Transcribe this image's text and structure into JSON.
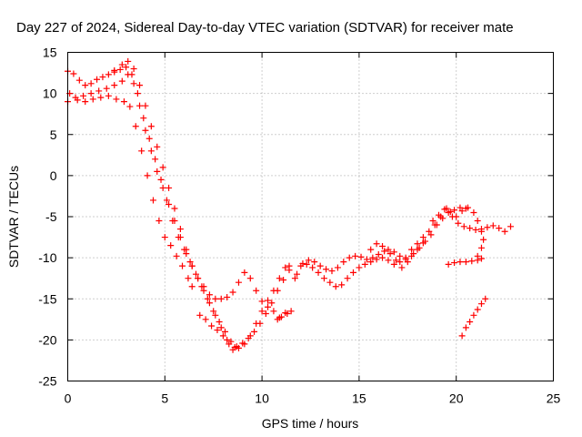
{
  "chart_data": {
    "type": "scatter",
    "title": "Day 227 of 2024, Sidereal Day-to-day VTEC variation (SDTVAR) for receiver mate",
    "xlabel": "GPS time / hours",
    "ylabel": "SDTVAR / TECUs",
    "xlim": [
      0,
      25
    ],
    "ylim": [
      -25,
      15
    ],
    "xticks": [
      0,
      5,
      10,
      15,
      20,
      25
    ],
    "yticks": [
      -25,
      -20,
      -15,
      -10,
      -5,
      0,
      5,
      10,
      15
    ],
    "grid": true,
    "marker": "plus",
    "color": "#ff0000",
    "series": [
      {
        "values_xy": [
          [
            0.0,
            12.7
          ],
          [
            0.3,
            12.4
          ],
          [
            0.6,
            11.6
          ],
          [
            0.9,
            11.0
          ],
          [
            1.2,
            11.2
          ],
          [
            1.5,
            11.7
          ],
          [
            1.8,
            12.0
          ],
          [
            2.1,
            12.3
          ],
          [
            2.4,
            12.6
          ],
          [
            2.7,
            12.9
          ],
          [
            3.0,
            13.2
          ],
          [
            3.3,
            12.3
          ],
          [
            3.6,
            10.0
          ],
          [
            3.9,
            7.0
          ],
          [
            4.2,
            4.5
          ],
          [
            4.5,
            2.0
          ],
          [
            4.8,
            -0.5
          ],
          [
            5.1,
            -3.0
          ],
          [
            5.4,
            -5.5
          ],
          [
            5.7,
            -7.5
          ],
          [
            6.0,
            -9.0
          ],
          [
            6.3,
            -10.5
          ],
          [
            6.6,
            -12.0
          ],
          [
            6.9,
            -13.5
          ],
          [
            7.2,
            -15.0
          ],
          [
            7.5,
            -16.5
          ],
          [
            7.8,
            -17.8
          ],
          [
            8.1,
            -19.0
          ],
          [
            8.4,
            -20.2
          ],
          [
            8.7,
            -20.8
          ],
          [
            9.0,
            -20.4
          ],
          [
            9.3,
            -19.8
          ],
          [
            9.6,
            -19.0
          ],
          [
            9.9,
            -18.0
          ],
          [
            10.2,
            -16.8
          ],
          [
            10.5,
            -15.5
          ],
          [
            10.8,
            -14.0
          ],
          [
            11.1,
            -12.7
          ],
          [
            11.4,
            -11.5
          ]
        ]
      },
      {
        "values_xy": [
          [
            0.0,
            9.0
          ],
          [
            0.4,
            9.5
          ],
          [
            0.8,
            9.7
          ],
          [
            1.2,
            10.0
          ],
          [
            1.6,
            10.3
          ],
          [
            2.0,
            10.6
          ],
          [
            2.4,
            11.0
          ],
          [
            2.8,
            11.5
          ],
          [
            3.1,
            12.3
          ],
          [
            3.4,
            11.2
          ],
          [
            3.7,
            8.5
          ],
          [
            4.0,
            5.5
          ],
          [
            4.3,
            3.0
          ],
          [
            4.6,
            0.5
          ],
          [
            4.9,
            -1.5
          ],
          [
            5.2,
            -3.5
          ],
          [
            5.5,
            -5.5
          ],
          [
            5.8,
            -7.5
          ],
          [
            6.1,
            -9.5
          ],
          [
            6.4,
            -11.0
          ],
          [
            6.7,
            -12.5
          ],
          [
            7.0,
            -14.0
          ],
          [
            7.3,
            -15.5
          ],
          [
            7.6,
            -17.0
          ],
          [
            7.9,
            -18.5
          ],
          [
            8.2,
            -20.0
          ],
          [
            8.5,
            -21.2
          ],
          [
            8.8,
            -21.0
          ],
          [
            9.1,
            -20.5
          ],
          [
            9.4,
            -19.5
          ],
          [
            9.7,
            -18.0
          ],
          [
            10.0,
            -16.5
          ],
          [
            10.3,
            -15.2
          ],
          [
            10.6,
            -14.0
          ],
          [
            10.9,
            -12.5
          ],
          [
            11.2,
            -11.2
          ]
        ]
      },
      {
        "values_xy": [
          [
            0.1,
            10.0
          ],
          [
            0.5,
            9.2
          ],
          [
            0.9,
            9.0
          ],
          [
            1.3,
            9.3
          ],
          [
            1.7,
            9.5
          ],
          [
            2.1,
            9.7
          ],
          [
            2.5,
            9.3
          ],
          [
            2.9,
            9.0
          ],
          [
            3.2,
            8.4
          ],
          [
            3.5,
            6.0
          ],
          [
            3.8,
            3.0
          ],
          [
            4.1,
            0.0
          ],
          [
            4.4,
            -3.0
          ],
          [
            4.7,
            -5.5
          ],
          [
            5.0,
            -7.5
          ],
          [
            5.3,
            -8.5
          ],
          [
            5.6,
            -9.8
          ],
          [
            5.9,
            -11.0
          ],
          [
            6.2,
            -12.5
          ],
          [
            6.4,
            -13.5
          ]
        ]
      },
      {
        "values_xy": [
          [
            2.4,
            12.8
          ],
          [
            2.8,
            13.5
          ],
          [
            3.1,
            13.9
          ],
          [
            3.4,
            13.0
          ],
          [
            3.7,
            11.0
          ],
          [
            4.0,
            8.5
          ],
          [
            4.3,
            6.0
          ],
          [
            4.6,
            3.5
          ],
          [
            4.9,
            1.0
          ],
          [
            5.2,
            -1.5
          ],
          [
            5.5,
            -4.0
          ],
          [
            5.8,
            -6.5
          ],
          [
            6.1,
            -9.0
          ],
          [
            6.4,
            -11.0
          ],
          [
            6.7,
            -12.5
          ],
          [
            7.0,
            -13.5
          ],
          [
            7.3,
            -14.5
          ],
          [
            7.6,
            -15.0
          ],
          [
            7.9,
            -15.0
          ],
          [
            8.2,
            -14.8
          ],
          [
            8.5,
            -14.2
          ],
          [
            8.8,
            -13.0
          ],
          [
            9.1,
            -11.8
          ],
          [
            9.4,
            -12.5
          ],
          [
            9.7,
            -14.0
          ],
          [
            10.0,
            -15.3
          ],
          [
            10.3,
            -16.0
          ],
          [
            10.6,
            -16.5
          ],
          [
            10.9,
            -17.3
          ],
          [
            11.2,
            -16.7
          ]
        ]
      },
      {
        "values_xy": [
          [
            6.8,
            -17.0
          ],
          [
            7.1,
            -17.5
          ],
          [
            7.4,
            -18.3
          ],
          [
            7.7,
            -18.8
          ],
          [
            8.0,
            -19.5
          ],
          [
            8.3,
            -20.5
          ],
          [
            8.6,
            -20.9
          ]
        ]
      },
      {
        "values_xy": [
          [
            11.4,
            -11.0
          ],
          [
            11.7,
            -12.5
          ],
          [
            12.0,
            -11.0
          ],
          [
            12.3,
            -10.8
          ],
          [
            12.6,
            -11.2
          ],
          [
            12.9,
            -11.8
          ],
          [
            13.2,
            -12.5
          ],
          [
            13.5,
            -13.0
          ],
          [
            13.8,
            -13.5
          ],
          [
            14.1,
            -13.3
          ],
          [
            14.4,
            -12.5
          ],
          [
            14.7,
            -11.8
          ],
          [
            15.0,
            -11.2
          ],
          [
            15.3,
            -10.8
          ],
          [
            15.6,
            -10.5
          ],
          [
            15.9,
            -10.2
          ],
          [
            16.2,
            -10.0
          ],
          [
            16.5,
            -10.3
          ],
          [
            16.8,
            -10.8
          ],
          [
            17.1,
            -10.5
          ],
          [
            17.4,
            -10.0
          ],
          [
            17.7,
            -9.0
          ],
          [
            18.0,
            -8.3
          ],
          [
            18.3,
            -7.5
          ],
          [
            18.6,
            -6.8
          ],
          [
            18.9,
            -6.0
          ],
          [
            19.2,
            -5.0
          ],
          [
            19.5,
            -4.0
          ],
          [
            19.8,
            -5.0
          ],
          [
            20.1,
            -5.8
          ],
          [
            20.4,
            -6.2
          ],
          [
            20.7,
            -6.4
          ],
          [
            21.0,
            -6.6
          ],
          [
            21.3,
            -6.5
          ],
          [
            21.6,
            -6.3
          ],
          [
            21.9,
            -6.1
          ],
          [
            22.2,
            -6.4
          ],
          [
            22.5,
            -6.8
          ],
          [
            22.8,
            -6.2
          ]
        ]
      },
      {
        "values_xy": [
          [
            11.8,
            -12.0
          ],
          [
            12.1,
            -10.7
          ],
          [
            12.4,
            -10.3
          ],
          [
            12.7,
            -10.5
          ],
          [
            13.0,
            -11.0
          ],
          [
            13.3,
            -11.4
          ],
          [
            13.6,
            -11.6
          ],
          [
            13.9,
            -11.2
          ],
          [
            14.2,
            -10.5
          ],
          [
            14.5,
            -10.0
          ],
          [
            14.8,
            -9.8
          ],
          [
            15.1,
            -9.9
          ],
          [
            15.4,
            -10.2
          ],
          [
            15.7,
            -10.0
          ],
          [
            16.0,
            -9.6
          ],
          [
            16.3,
            -9.2
          ],
          [
            16.6,
            -9.5
          ],
          [
            16.9,
            -10.3
          ],
          [
            17.2,
            -11.2
          ],
          [
            17.5,
            -10.5
          ],
          [
            17.8,
            -9.5
          ],
          [
            18.1,
            -8.8
          ],
          [
            18.4,
            -8.0
          ],
          [
            18.7,
            -7.2
          ],
          [
            19.0,
            -6.0
          ],
          [
            19.3,
            -5.2
          ],
          [
            19.6,
            -4.5
          ],
          [
            19.9,
            -4.2
          ],
          [
            20.2,
            -3.9
          ],
          [
            20.5,
            -4.0
          ]
        ]
      },
      {
        "values_xy": [
          [
            15.6,
            -9.0
          ],
          [
            15.9,
            -8.3
          ],
          [
            16.2,
            -8.6
          ],
          [
            16.5,
            -9.0
          ],
          [
            16.8,
            -9.3
          ],
          [
            17.1,
            -9.8
          ],
          [
            17.4,
            -10.2
          ],
          [
            17.7,
            -9.8
          ],
          [
            18.0,
            -9.0
          ],
          [
            18.3,
            -8.2
          ]
        ]
      },
      {
        "values_xy": [
          [
            18.8,
            -5.5
          ],
          [
            19.1,
            -4.8
          ],
          [
            19.4,
            -4.1
          ],
          [
            19.7,
            -4.4
          ],
          [
            20.0,
            -5.0
          ],
          [
            20.3,
            -4.3
          ],
          [
            20.6,
            -3.9
          ],
          [
            20.9,
            -4.5
          ],
          [
            21.1,
            -5.5
          ],
          [
            21.3,
            -6.8
          ],
          [
            21.4,
            -7.8
          ],
          [
            21.3,
            -8.8
          ],
          [
            21.1,
            -9.8
          ]
        ]
      },
      {
        "values_xy": [
          [
            19.6,
            -10.8
          ],
          [
            19.9,
            -10.6
          ],
          [
            20.2,
            -10.5
          ],
          [
            20.5,
            -10.5
          ],
          [
            20.8,
            -10.4
          ],
          [
            21.1,
            -10.3
          ],
          [
            21.3,
            -10.1
          ]
        ]
      },
      {
        "values_xy": [
          [
            20.3,
            -19.5
          ],
          [
            20.5,
            -18.5
          ],
          [
            20.7,
            -17.8
          ],
          [
            20.9,
            -17.0
          ],
          [
            21.1,
            -16.3
          ],
          [
            21.3,
            -15.6
          ],
          [
            21.5,
            -15.0
          ]
        ]
      },
      {
        "values_xy": [
          [
            10.8,
            -17.5
          ],
          [
            11.0,
            -17.2
          ],
          [
            11.3,
            -16.8
          ],
          [
            11.5,
            -16.5
          ]
        ]
      }
    ]
  }
}
